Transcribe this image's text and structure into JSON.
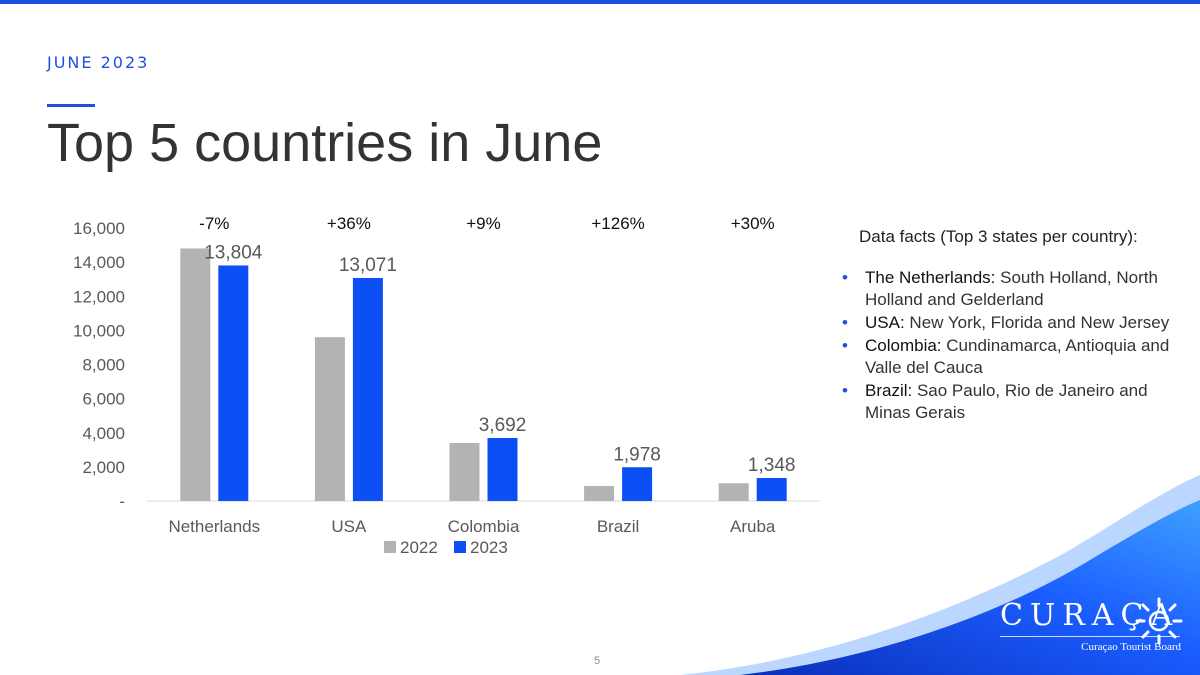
{
  "header": {
    "eyebrow": "JUNE 2023",
    "title": "Top 5 countries in June"
  },
  "chart_data": {
    "type": "bar",
    "categories": [
      "Netherlands",
      "USA",
      "Colombia",
      "Brazil",
      "Aruba"
    ],
    "series": [
      {
        "name": "2022",
        "values": [
          14800,
          9600,
          3400,
          880,
          1040
        ],
        "color": "#b3b3b3"
      },
      {
        "name": "2023",
        "values": [
          13804,
          13071,
          3692,
          1978,
          1348
        ],
        "color": "#0b4ff5"
      }
    ],
    "data_labels": [
      "13,804",
      "13,071",
      "3,692",
      "1,978",
      "1,348"
    ],
    "change_labels": [
      "-7%",
      "+36%",
      "+9%",
      "+126%",
      "+30%"
    ],
    "y_ticks": [
      "-",
      "2,000",
      "4,000",
      "6,000",
      "8,000",
      "10,000",
      "12,000",
      "14,000",
      "16,000"
    ],
    "ylim": [
      0,
      16000
    ],
    "legend_position": "bottom",
    "grid": false
  },
  "facts": {
    "heading": "Data facts (Top 3 states per country):",
    "items": [
      {
        "label": "The Netherlands:",
        "text": " South Holland, North Holland and Gelderland"
      },
      {
        "label": "USA:",
        "text": " New York, Florida and New Jersey"
      },
      {
        "label": "Colombia:",
        "text": " Cundinamarca, Antioquia and Valle del Cauca"
      },
      {
        "label": "Brazil:",
        "text": " Sao Paulo, Rio de Janeiro and Minas Gerais"
      }
    ]
  },
  "footer": {
    "page_number": "5",
    "logo_text": "CURAÇA",
    "logo_sub": "Curaçao Tourist Board"
  },
  "colors": {
    "accent": "#1f4fe0",
    "series_2022": "#b3b3b3",
    "series_2023": "#0b4ff5"
  }
}
